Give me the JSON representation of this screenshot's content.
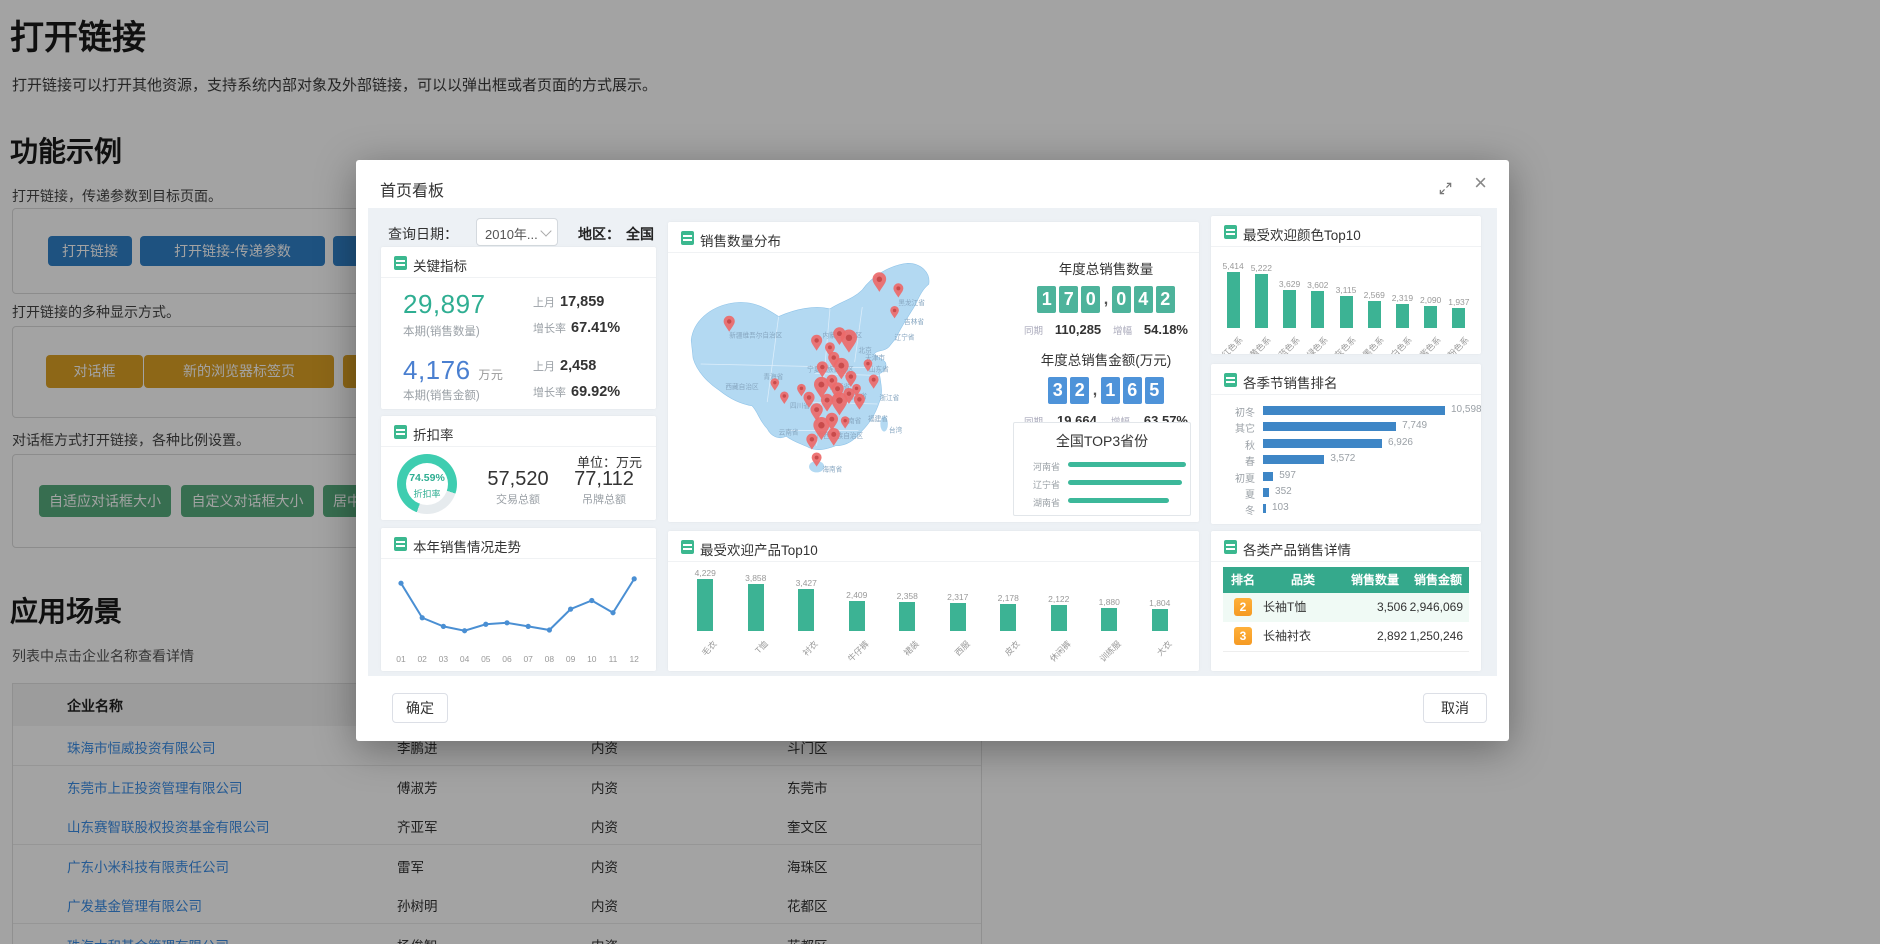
{
  "colors": {
    "teal_accent": "#3cb89a",
    "bar_teal": "#3cb394",
    "bar_blue": "#3e86c6",
    "flip_green": "#4db39b",
    "flip_blue": "#4e93d9",
    "kpi_teal": "#2fae92",
    "kpi_blue": "#4a7fd0",
    "pin_red": "#ed6a6a",
    "map_fill": "#b3d9f2",
    "table_header_teal": "#35a98c",
    "btn_blue": "#2f80c9",
    "btn_gold": "#dda125",
    "btn_green": "#57ad7d",
    "link_blue": "#3a8ee6",
    "badge_orange": "#f59a23"
  },
  "page": {
    "title": "打开链接",
    "description": "打开链接可以打开其他资源，支持系统内部对象及外部链接，可以以弹出框或者页面的方式展示。",
    "feature_section": {
      "title": "功能示例",
      "hint1": "打开链接，传递参数到目标页面。",
      "blue_buttons": [
        "打开链接",
        "打开链接-传递参数",
        ""
      ],
      "hint2": "打开链接的多种显示方式。",
      "gold_buttons": [
        "对话框",
        "新的浏览器标签页",
        ""
      ],
      "hint3": "对话框方式打开链接，各种比例设置。",
      "green_buttons": [
        "自适应对话框大小",
        "自定义对话框大小",
        "居中"
      ]
    },
    "scenario_section": {
      "title": "应用场景",
      "hint": "列表中点击企业名称查看详情",
      "table": {
        "visible_header": "企业名称",
        "rows": [
          [
            "珠海市恒威投资有限公司",
            "李鹏进",
            "内资",
            "斗门区"
          ],
          [
            "东莞市上正投资管理有限公司",
            "傅淑芳",
            "内资",
            "东莞市"
          ],
          [
            "山东赛智联股权投资基金有限公司",
            "齐亚军",
            "内资",
            "奎文区"
          ],
          [
            "广东小米科技有限责任公司",
            "雷军",
            "内资",
            "海珠区"
          ],
          [
            "广发基金管理有限公司",
            "孙树明",
            "内资",
            "花都区"
          ],
          [
            "珠海太和基金管理有限公司",
            "杨俊智",
            "内资",
            "花都区"
          ]
        ]
      }
    }
  },
  "modal": {
    "title": "首页看板",
    "query": {
      "date_label": "查询日期：",
      "date_value": "2010年...",
      "region_label": "地区：",
      "region_value": "全国"
    },
    "kpi": {
      "title": "关键指标",
      "metrics": [
        {
          "value": "29,897",
          "unit": "",
          "label": "本期(销售数量)",
          "prev_label": "上月",
          "prev": "17,859",
          "growth_label": "增长率",
          "growth": "67.41%"
        },
        {
          "value": "4,176",
          "unit": "万元",
          "label": "本期(销售金额)",
          "prev_label": "上月",
          "prev": "2,458",
          "growth_label": "增长率",
          "growth": "69.92%"
        }
      ]
    },
    "discount": {
      "title": "折扣率",
      "unit_label": "单位：万元",
      "percent": "74.59%",
      "percent_label": "折扣率",
      "percent_value": 74.59,
      "items": [
        {
          "value": "57,520",
          "label": "交易总额"
        },
        {
          "value": "77,112",
          "label": "吊牌总额"
        }
      ]
    },
    "map_panel": {
      "title": "销售数量分布",
      "annual_qty": {
        "title": "年度总销售数量",
        "value": "170,042",
        "prev_label": "同期",
        "prev": "110,285",
        "growth_label": "增幅",
        "growth": "54.18%"
      },
      "annual_amount": {
        "title": "年度总销售金额(万元)",
        "value": "32,165",
        "prev_label": "同期",
        "prev": "19,664",
        "growth_label": "增幅",
        "growth": "63.57%"
      },
      "top3": {
        "title": "全国TOP3省份",
        "items": [
          {
            "label": "河南省",
            "pct": 100
          },
          {
            "label": "辽宁省",
            "pct": 97
          },
          {
            "label": "湖南省",
            "pct": 86
          }
        ]
      },
      "province_labels": [
        "黑龙江省",
        "吉林省",
        "辽宁省",
        "内蒙古自治区",
        "北京",
        "天津市",
        "山东省",
        "陕西省",
        "四川省",
        "湖北省",
        "湖南省",
        "浙江省",
        "福建省",
        "台湾",
        "云南省",
        "广西壮族自治区",
        "海南省",
        "青海省",
        "宁夏回族自治区",
        "新疆维吾尔自治区",
        "西藏自治区"
      ]
    },
    "footer": {
      "ok": "确定",
      "cancel": "取消"
    }
  },
  "chart_data": [
    {
      "id": "colors_top10",
      "type": "bar",
      "title": "最受欢迎颜色Top10",
      "categories": [
        "红色系",
        "黄色系",
        "蓝色系",
        "绿色系",
        "灰色系",
        "黑色系",
        "白色系",
        "紫色系",
        "粉色系"
      ],
      "values": [
        5414,
        5222,
        3629,
        3602,
        3115,
        2569,
        2319,
        2090,
        1937
      ],
      "bar_color": "#3cb394",
      "value_labels": true,
      "grid": false
    },
    {
      "id": "season_rank",
      "type": "bar",
      "orientation": "horizontal",
      "title": "各季节销售排名",
      "categories": [
        "初冬",
        "其它",
        "秋",
        "春",
        "初夏",
        "夏",
        "冬"
      ],
      "values": [
        10598,
        7749,
        6926,
        3572,
        597,
        352,
        103
      ],
      "bar_color": "#3e86c6",
      "value_labels": true,
      "grid": false
    },
    {
      "id": "trend",
      "type": "line",
      "title": "本年销售情况走势",
      "categories": [
        "01",
        "02",
        "03",
        "04",
        "05",
        "06",
        "07",
        "08",
        "09",
        "10",
        "11",
        "12"
      ],
      "values_rel_pct": [
        90,
        42,
        30,
        24,
        33,
        35,
        30,
        25,
        54,
        66,
        49,
        96
      ],
      "line_color": "#4a8fd3",
      "note": "y-axis unlabeled; values estimated from pixel heights (0-100)"
    },
    {
      "id": "products_top10",
      "type": "bar",
      "title": "最受欢迎产品Top10",
      "categories": [
        "毛衣",
        "T恤",
        "衬衣",
        "牛仔裤",
        "裙装",
        "西服",
        "皮衣",
        "休闲裤",
        "训练服",
        "大衣"
      ],
      "values": [
        4229,
        3858,
        3427,
        2409,
        2358,
        2317,
        2178,
        2122,
        1880,
        1804
      ],
      "bar_color": "#3cb394",
      "value_labels": true,
      "grid": false
    },
    {
      "id": "top3_provinces",
      "type": "bar",
      "orientation": "horizontal",
      "title": "全国TOP3省份",
      "categories": [
        "河南省",
        "辽宁省",
        "湖南省"
      ],
      "values_rel_pct": [
        100,
        97,
        86
      ],
      "bar_color": "#3cb89a",
      "note": "no numeric labels shown; relative bar lengths"
    }
  ],
  "details_table": {
    "title": "各类产品销售详情",
    "headers": [
      "排名",
      "品类",
      "销售数量",
      "销售金额"
    ],
    "rows": [
      {
        "rank": "2",
        "category": "长袖T恤",
        "qty": "3,506",
        "amount": "2,946,069"
      },
      {
        "rank": "3",
        "category": "长袖衬衣",
        "qty": "2,892",
        "amount": "1,250,246"
      }
    ]
  }
}
